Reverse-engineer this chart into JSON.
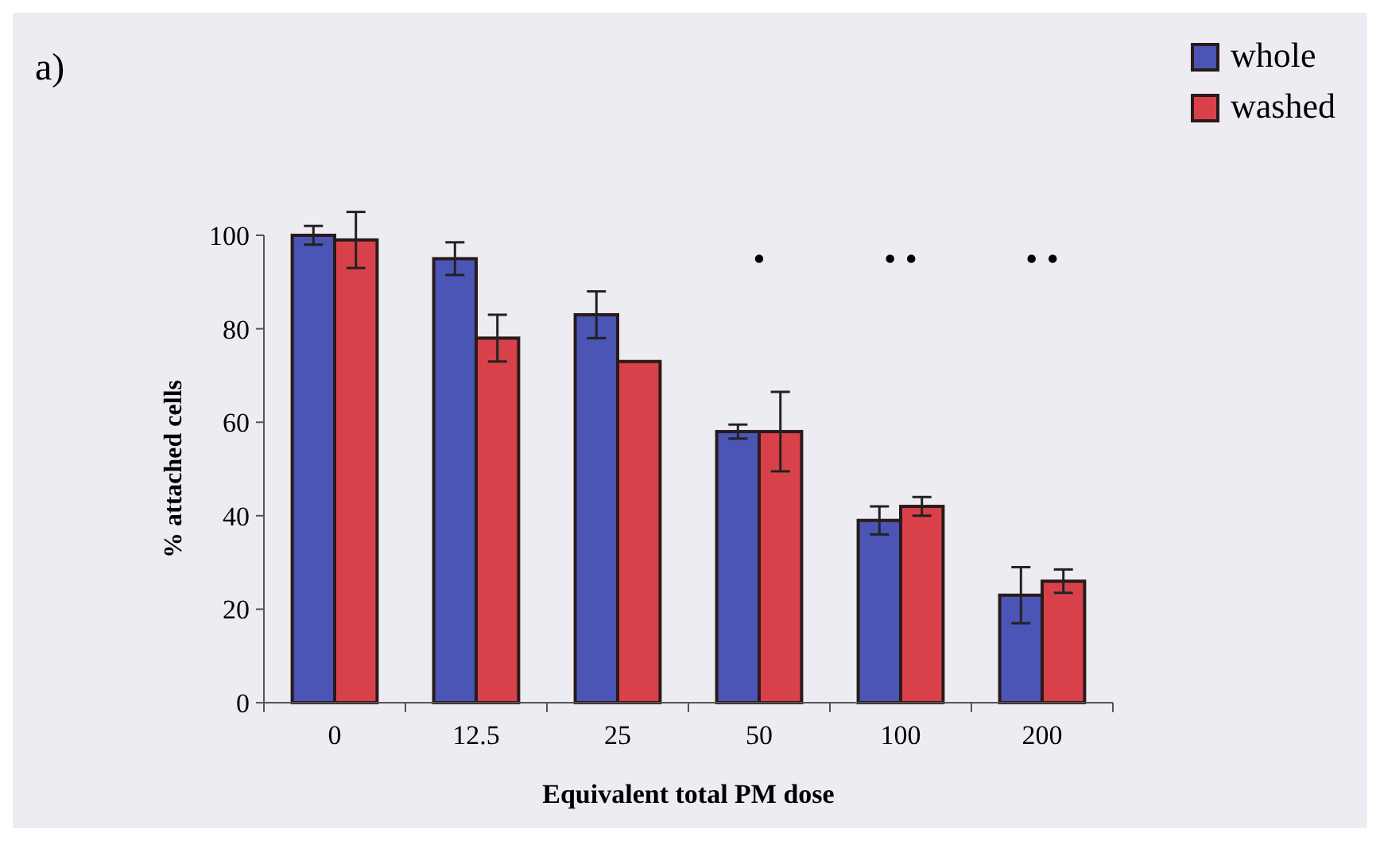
{
  "chart_data": {
    "type": "bar",
    "title": "a)",
    "xlabel": "Equivalent total PM dose",
    "ylabel": "% attached cells",
    "categories": [
      "0",
      "12.5",
      "25",
      "50",
      "100",
      "200"
    ],
    "series": [
      {
        "name": "whole",
        "color": "#4a55b5",
        "values": [
          100,
          95,
          83,
          58,
          39,
          23
        ],
        "errors": [
          2,
          3.5,
          5,
          1.5,
          3,
          6
        ]
      },
      {
        "name": "washed",
        "color": "#d9414a",
        "values": [
          99,
          78,
          73,
          58,
          42,
          26
        ],
        "errors": [
          6,
          5,
          null,
          8.5,
          2,
          2.5
        ]
      }
    ],
    "ylim": [
      0,
      100
    ],
    "yticks": [
      0,
      20,
      40,
      60,
      80,
      100
    ],
    "grid": false,
    "legend": "top right",
    "annotations": [
      "•",
      "• •",
      "• •"
    ]
  }
}
